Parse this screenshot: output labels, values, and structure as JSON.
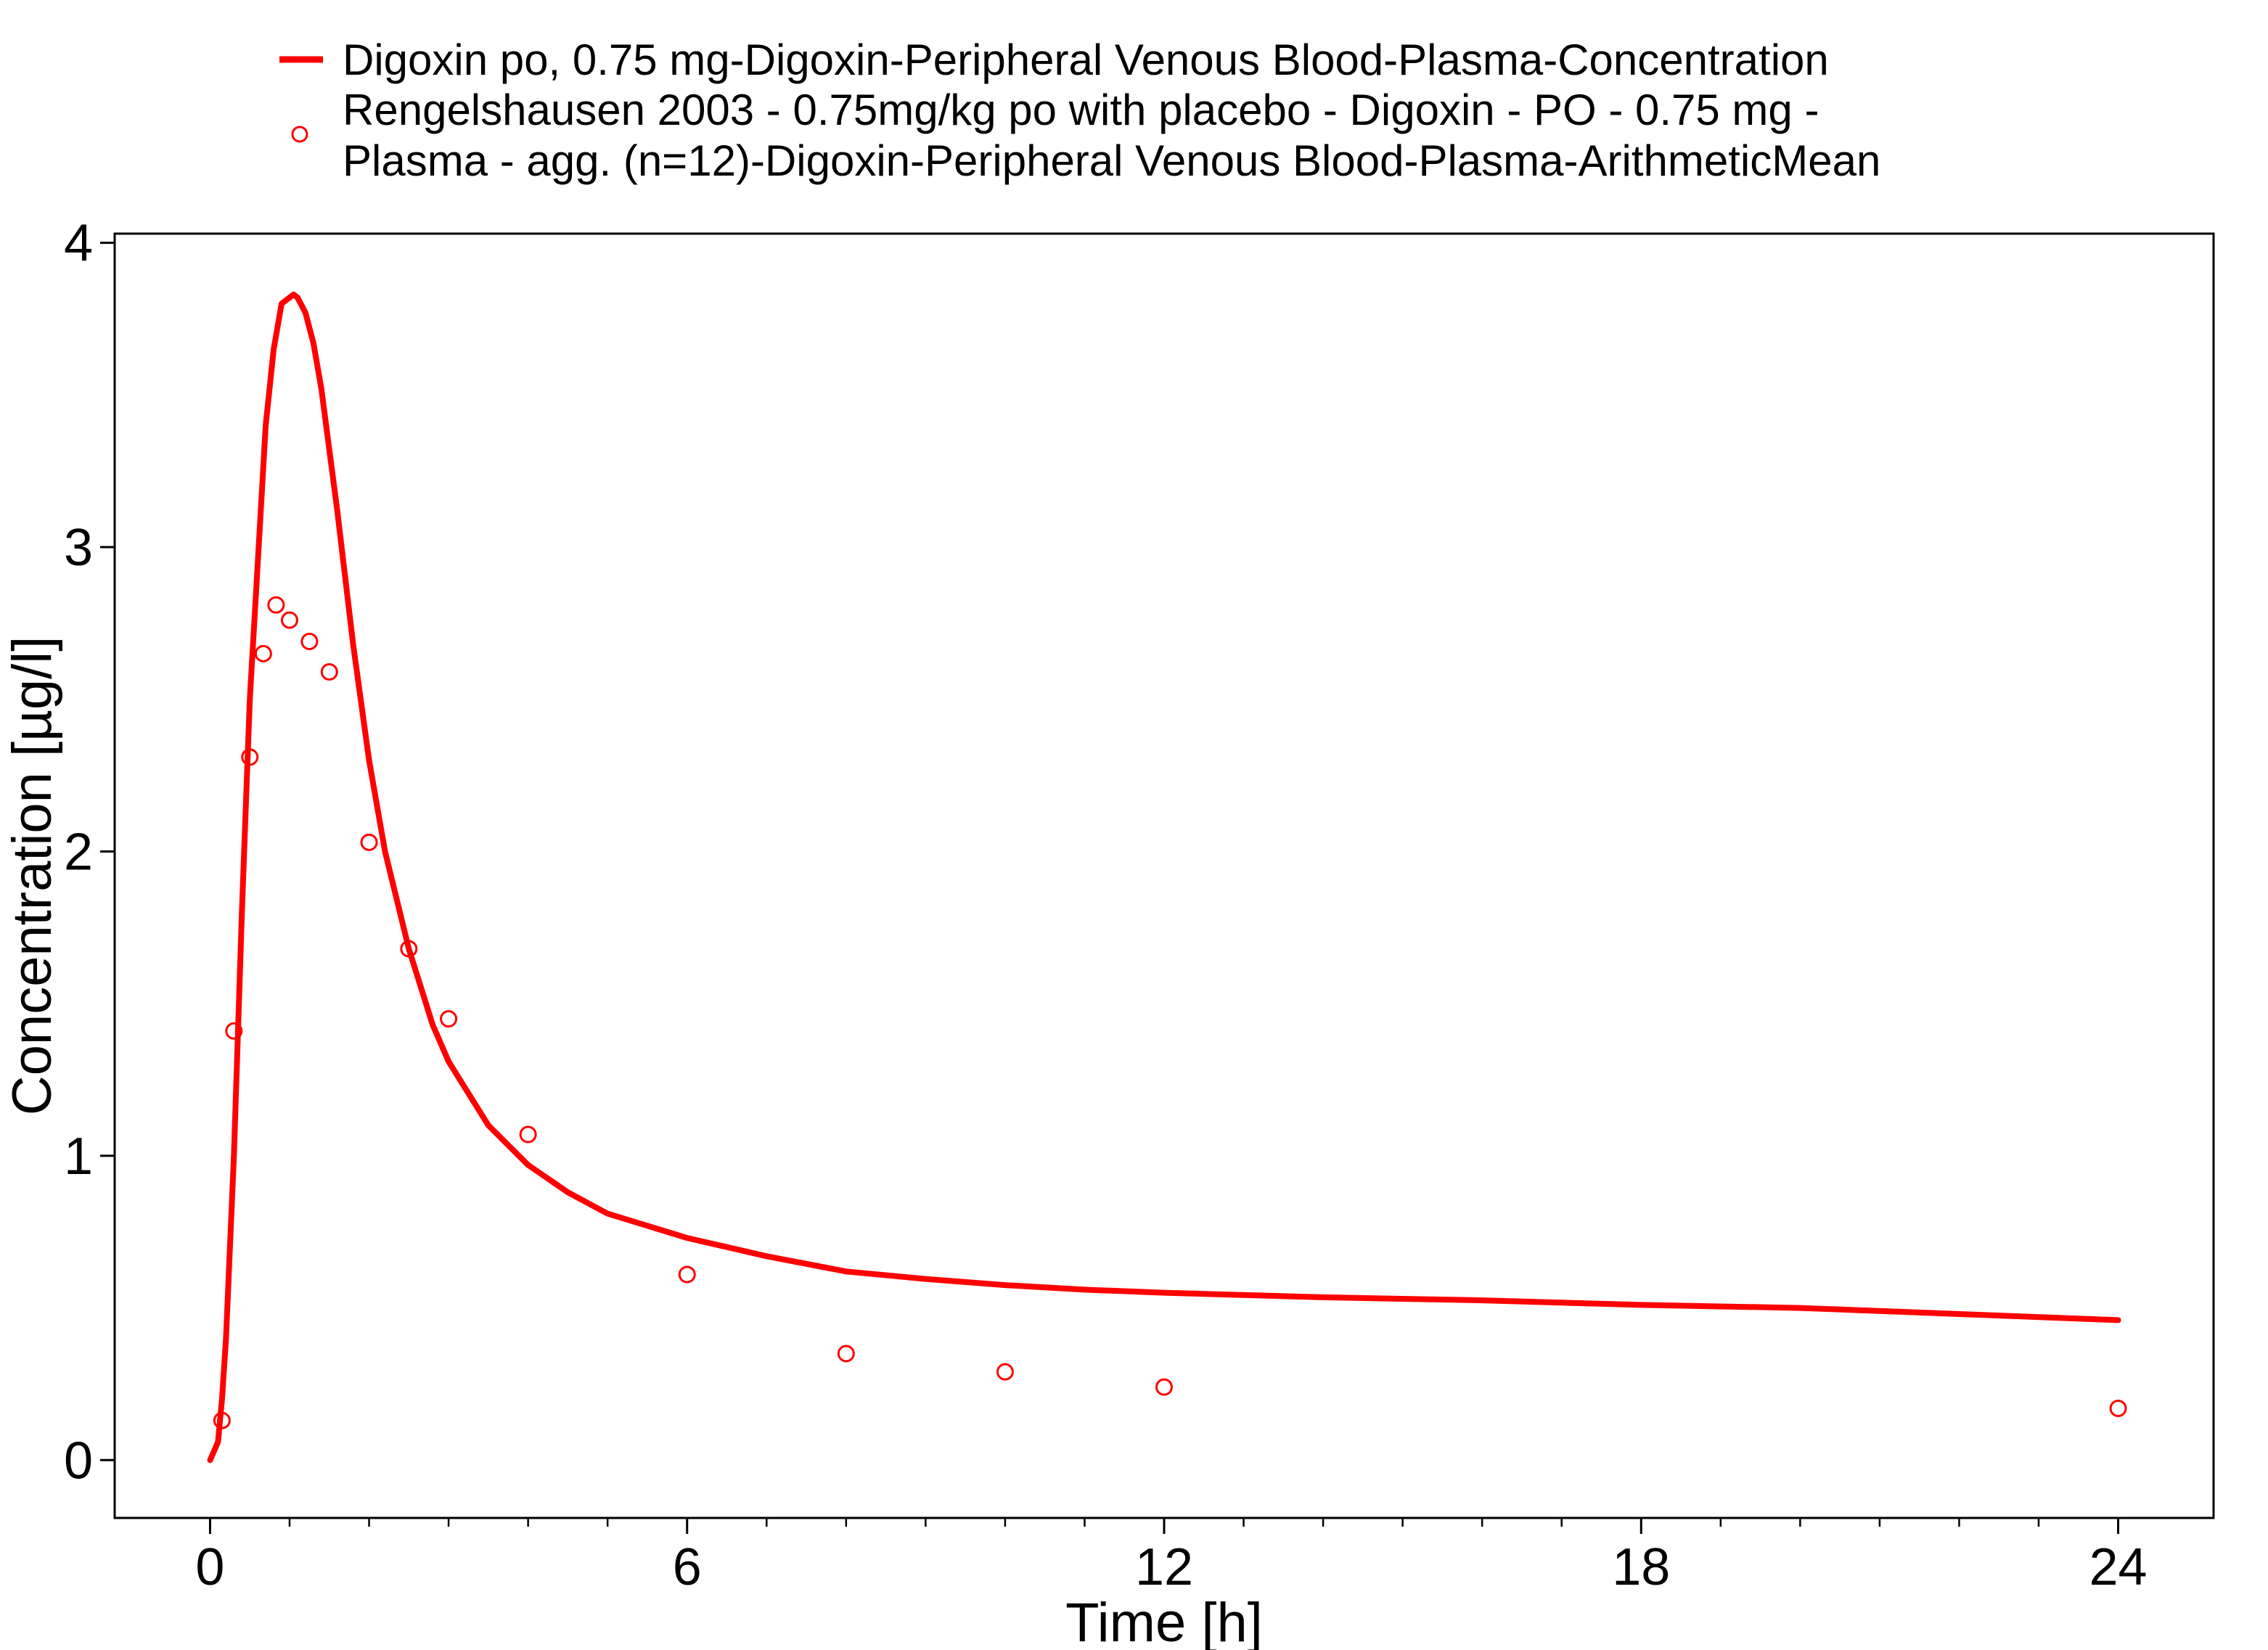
{
  "chart_data": {
    "type": "line",
    "xlabel": "Time [h]",
    "ylabel": "Concentration [µg/l]",
    "xlim": [
      -1.2,
      25.2
    ],
    "ylim": [
      -0.19,
      4.03
    ],
    "xticks": [
      0,
      6,
      12,
      18,
      24
    ],
    "xtick_labels": [
      "0",
      "6",
      "12",
      "18",
      "24"
    ],
    "x_minor_ticks": [
      1,
      2,
      3,
      4,
      5,
      7,
      8,
      9,
      10,
      11,
      13,
      14,
      15,
      16,
      17,
      19,
      20,
      21,
      22,
      23
    ],
    "yticks": [
      0,
      1,
      2,
      3,
      4
    ],
    "ytick_labels": [
      "0",
      "1",
      "2",
      "3",
      "4"
    ],
    "grid": false,
    "legend_position": "top",
    "colors": {
      "series": "#ff0000",
      "frame": "#000000",
      "background": "#ffffff"
    },
    "legend": [
      {
        "marker": "line",
        "lines": [
          "Digoxin po, 0.75 mg-Digoxin-Peripheral Venous Blood-Plasma-Concentration"
        ]
      },
      {
        "marker": "circle",
        "lines": [
          "Rengelshausen 2003 - 0.75mg/kg po with placebo - Digoxin - PO - 0.75 mg -",
          "Plasma - agg. (n=12)-Digoxin-Peripheral Venous Blood-Plasma-ArithmeticMean"
        ]
      }
    ],
    "series": [
      {
        "name": "Digoxin po, 0.75 mg-Digoxin-Peripheral Venous Blood-Plasma-Concentration",
        "type": "line",
        "x": [
          0,
          0.1,
          0.15,
          0.2,
          0.3,
          0.4,
          0.5,
          0.6,
          0.7,
          0.8,
          0.9,
          1.0,
          1.05,
          1.1,
          1.2,
          1.3,
          1.4,
          1.6,
          1.8,
          2.0,
          2.2,
          2.5,
          2.8,
          3.0,
          3.5,
          4.0,
          4.5,
          5.0,
          6.0,
          7.0,
          8.0,
          9.0,
          10.0,
          11.0,
          12.0,
          14.0,
          16.0,
          18.0,
          20.0,
          22.0,
          24.0
        ],
        "y": [
          0.0,
          0.06,
          0.2,
          0.4,
          1.0,
          1.8,
          2.5,
          2.95,
          3.4,
          3.65,
          3.8,
          3.82,
          3.83,
          3.82,
          3.77,
          3.67,
          3.52,
          3.12,
          2.68,
          2.3,
          2.0,
          1.68,
          1.43,
          1.31,
          1.1,
          0.97,
          0.88,
          0.81,
          0.73,
          0.67,
          0.62,
          0.595,
          0.575,
          0.56,
          0.55,
          0.535,
          0.525,
          0.51,
          0.5,
          0.48,
          0.46
        ]
      },
      {
        "name": "Rengelshausen 2003 - 0.75mg/kg po with placebo - Digoxin - PO - 0.75 mg - Plasma - agg. (n=12)-Digoxin-Peripheral Venous Blood-Plasma-ArithmeticMean",
        "type": "scatter",
        "x": [
          0.15,
          0.3,
          0.5,
          0.67,
          0.83,
          1.0,
          1.25,
          1.5,
          2.0,
          2.5,
          3.0,
          4.0,
          6.0,
          8.0,
          10.0,
          12.0,
          24.0
        ],
        "y": [
          0.13,
          1.41,
          2.31,
          2.65,
          2.81,
          2.76,
          2.69,
          2.59,
          2.03,
          1.68,
          1.45,
          1.07,
          0.61,
          0.35,
          0.29,
          0.24,
          0.17
        ]
      }
    ]
  }
}
